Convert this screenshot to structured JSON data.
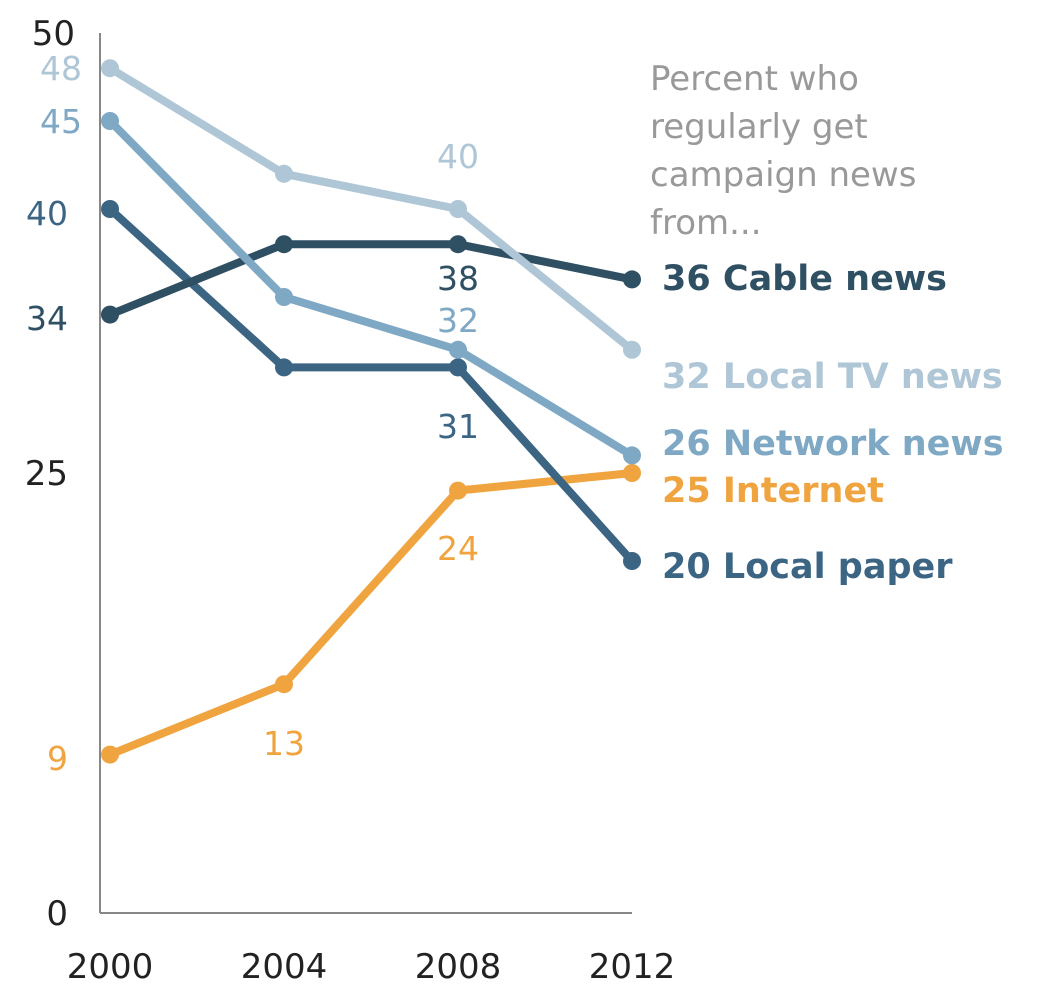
{
  "chart_data": {
    "type": "line",
    "title": "",
    "xlabel": "",
    "ylabel": "",
    "ylim": [
      0,
      50
    ],
    "grid": false,
    "x": [
      "2000",
      "2004",
      "2008",
      "2012"
    ],
    "y_ticks": [
      "0",
      "25",
      "50"
    ],
    "note": [
      "Percent who",
      "regularly get",
      "campaign news",
      "from..."
    ],
    "series": [
      {
        "name": "Local TV news",
        "color": "#aec6d6",
        "values": [
          48,
          42,
          40,
          32
        ],
        "point_labels": [
          "48",
          "",
          "40",
          ""
        ],
        "end_label": "32 Local TV news"
      },
      {
        "name": "Network news",
        "color": "#7ea8c4",
        "values": [
          45,
          35,
          32,
          26
        ],
        "point_labels": [
          "45",
          "",
          "32",
          ""
        ],
        "end_label": "26 Network news"
      },
      {
        "name": "Cable news",
        "color": "#2f4f63",
        "values": [
          34,
          38,
          38,
          36
        ],
        "point_labels": [
          "34",
          "",
          "38",
          ""
        ],
        "end_label": "36 Cable news"
      },
      {
        "name": "Local paper",
        "color": "#3b6583",
        "values": [
          40,
          31,
          31,
          20
        ],
        "point_labels": [
          "40",
          "",
          "31",
          ""
        ],
        "end_label": "20 Local paper"
      },
      {
        "name": "Internet",
        "color": "#f0a440",
        "values": [
          9,
          13,
          24,
          25
        ],
        "point_labels": [
          "9",
          "13",
          "24",
          ""
        ],
        "end_label": "25 Internet"
      }
    ]
  }
}
